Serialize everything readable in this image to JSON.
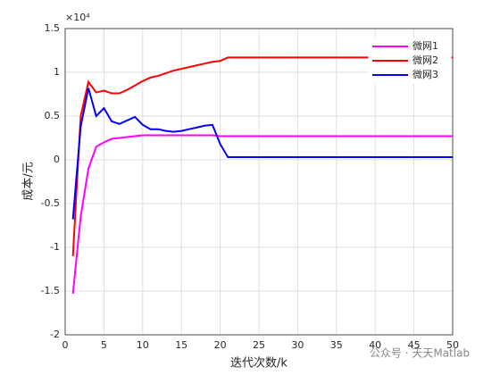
{
  "chart_data": {
    "type": "line",
    "y_multiplier": "×10⁴",
    "xlabel": "迭代次数/k",
    "ylabel": "成本/元",
    "watermark": "公众号 · 天天Matlab",
    "x": [
      1,
      2,
      3,
      4,
      5,
      6,
      7,
      8,
      9,
      10,
      11,
      12,
      13,
      14,
      15,
      16,
      17,
      18,
      19,
      20,
      21,
      22,
      23,
      24,
      25,
      26,
      27,
      28,
      29,
      30,
      31,
      32,
      33,
      34,
      35,
      36,
      37,
      38,
      39,
      40,
      41,
      42,
      43,
      44,
      45,
      46,
      47,
      48,
      49,
      50
    ],
    "series": [
      {
        "name": "微网1",
        "color": "#ff00ff",
        "values": [
          -1.53,
          -0.65,
          -0.1,
          0.15,
          0.2,
          0.24,
          0.25,
          0.26,
          0.27,
          0.28,
          0.28,
          0.28,
          0.28,
          0.28,
          0.28,
          0.28,
          0.28,
          0.28,
          0.28,
          0.27,
          0.27,
          0.27,
          0.27,
          0.27,
          0.27,
          0.27,
          0.27,
          0.27,
          0.27,
          0.27,
          0.27,
          0.27,
          0.27,
          0.27,
          0.27,
          0.27,
          0.27,
          0.27,
          0.27,
          0.27,
          0.27,
          0.27,
          0.27,
          0.27,
          0.27,
          0.27,
          0.27,
          0.27,
          0.27,
          0.27
        ]
      },
      {
        "name": "微网2",
        "color": "#ff0000",
        "values": [
          -1.1,
          0.5,
          0.89,
          0.77,
          0.79,
          0.76,
          0.76,
          0.8,
          0.85,
          0.9,
          0.94,
          0.96,
          0.99,
          1.02,
          1.04,
          1.06,
          1.08,
          1.1,
          1.12,
          1.13,
          1.17,
          1.17,
          1.17,
          1.17,
          1.17,
          1.17,
          1.17,
          1.17,
          1.17,
          1.17,
          1.17,
          1.17,
          1.17,
          1.17,
          1.17,
          1.17,
          1.17,
          1.17,
          1.17,
          1.17,
          1.17,
          1.17,
          1.17,
          1.17,
          1.17,
          1.17,
          1.17,
          1.17,
          1.17,
          1.17
        ]
      },
      {
        "name": "微网3",
        "color": "#0000ff",
        "values": [
          -0.68,
          0.38,
          0.82,
          0.5,
          0.59,
          0.44,
          0.41,
          0.45,
          0.49,
          0.4,
          0.35,
          0.35,
          0.33,
          0.32,
          0.33,
          0.35,
          0.37,
          0.39,
          0.4,
          0.18,
          0.03,
          0.03,
          0.03,
          0.03,
          0.03,
          0.03,
          0.03,
          0.03,
          0.03,
          0.03,
          0.03,
          0.03,
          0.03,
          0.03,
          0.03,
          0.03,
          0.03,
          0.03,
          0.03,
          0.03,
          0.03,
          0.03,
          0.03,
          0.03,
          0.03,
          0.03,
          0.03,
          0.03,
          0.03,
          0.03
        ]
      }
    ],
    "xlim": [
      0,
      50
    ],
    "xticks": [
      0,
      5,
      10,
      15,
      20,
      25,
      30,
      35,
      40,
      45,
      50
    ],
    "ylim": [
      -2,
      1.5
    ],
    "yticks": [
      -2,
      -1.5,
      -1,
      -0.5,
      0,
      0.5,
      1,
      1.5
    ],
    "grid": true,
    "legend": "northeast"
  }
}
